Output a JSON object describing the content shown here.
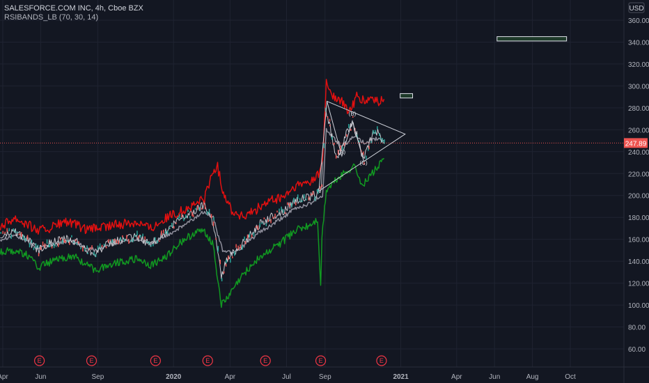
{
  "header": {
    "symbol_line": "SALESFORCE.COM INC, 4h, Cboe BZX",
    "indicator_line": "RSIBANDS_LB (70, 30, 14)"
  },
  "chart_data": {
    "type": "line",
    "currency": "USD",
    "last_price": "247.89",
    "y_ticks": [
      "360.00",
      "340.00",
      "320.00",
      "300.00",
      "280.00",
      "260.00",
      "240.00",
      "220.00",
      "200.00",
      "180.00",
      "160.00",
      "140.00",
      "120.00",
      "100.00",
      "80.00",
      "60.00"
    ],
    "ylim": [
      45,
      368
    ],
    "x_ticks": [
      {
        "label": "Apr",
        "date": "2019-04-01"
      },
      {
        "label": "Jun",
        "date": "2019-06-01"
      },
      {
        "label": "Sep",
        "date": "2019-09-01"
      },
      {
        "label": "2020",
        "date": "2020-01-01"
      },
      {
        "label": "Apr",
        "date": "2020-04-01"
      },
      {
        "label": "Jul",
        "date": "2020-07-01"
      },
      {
        "label": "Sep",
        "date": "2020-09-01"
      },
      {
        "label": "2021",
        "date": "2021-01-01"
      },
      {
        "label": "Apr",
        "date": "2021-04-01"
      },
      {
        "label": "Jun",
        "date": "2021-06-01"
      },
      {
        "label": "Aug",
        "date": "2021-08-01"
      },
      {
        "label": "Oct",
        "date": "2021-10-01"
      }
    ],
    "earnings_marker": "E",
    "earnings_dates": [
      "2019-05-30",
      "2019-08-22",
      "2019-12-03",
      "2020-02-25",
      "2020-05-28",
      "2020-08-25",
      "2020-12-01"
    ],
    "series": [
      {
        "name": "",
        "role": "upper_band",
        "color": "#e31010",
        "points": [
          [
            "2019-03-28",
            172
          ],
          [
            "2019-04-20",
            180
          ],
          [
            "2019-05-10",
            174
          ],
          [
            "2019-05-28",
            168
          ],
          [
            "2019-06-15",
            170
          ],
          [
            "2019-07-10",
            176
          ],
          [
            "2019-07-28",
            173
          ],
          [
            "2019-08-15",
            168
          ],
          [
            "2019-08-28",
            170
          ],
          [
            "2019-09-20",
            172
          ],
          [
            "2019-10-10",
            174
          ],
          [
            "2019-11-05",
            176
          ],
          [
            "2019-11-25",
            170
          ],
          [
            "2019-12-15",
            178
          ],
          [
            "2020-01-10",
            185
          ],
          [
            "2020-02-01",
            190
          ],
          [
            "2020-02-20",
            198
          ],
          [
            "2020-03-05",
            222
          ],
          [
            "2020-03-12",
            226
          ],
          [
            "2020-03-20",
            205
          ],
          [
            "2020-04-05",
            185
          ],
          [
            "2020-04-25",
            180
          ],
          [
            "2020-05-15",
            188
          ],
          [
            "2020-06-05",
            195
          ],
          [
            "2020-06-25",
            198
          ],
          [
            "2020-07-15",
            208
          ],
          [
            "2020-08-05",
            212
          ],
          [
            "2020-08-20",
            218
          ],
          [
            "2020-08-28",
            230
          ],
          [
            "2020-09-03",
            303
          ],
          [
            "2020-09-15",
            290
          ],
          [
            "2020-09-28",
            285
          ],
          [
            "2020-10-10",
            276
          ],
          [
            "2020-10-22",
            290
          ],
          [
            "2020-11-05",
            285
          ],
          [
            "2020-11-15",
            289
          ],
          [
            "2020-11-25",
            285
          ],
          [
            "2020-12-05",
            288
          ]
        ]
      },
      {
        "name": "",
        "role": "lower_band",
        "color": "#119a21",
        "points": [
          [
            "2019-03-28",
            148
          ],
          [
            "2019-04-20",
            150
          ],
          [
            "2019-05-10",
            146
          ],
          [
            "2019-05-28",
            134
          ],
          [
            "2019-06-15",
            139
          ],
          [
            "2019-07-10",
            143
          ],
          [
            "2019-07-28",
            144
          ],
          [
            "2019-08-15",
            136
          ],
          [
            "2019-08-28",
            132
          ],
          [
            "2019-09-20",
            137
          ],
          [
            "2019-10-10",
            140
          ],
          [
            "2019-11-05",
            142
          ],
          [
            "2019-11-25",
            136
          ],
          [
            "2019-12-15",
            142
          ],
          [
            "2020-01-10",
            156
          ],
          [
            "2020-02-01",
            165
          ],
          [
            "2020-02-20",
            168
          ],
          [
            "2020-03-05",
            155
          ],
          [
            "2020-03-12",
            125
          ],
          [
            "2020-03-18",
            100
          ],
          [
            "2020-03-25",
            104
          ],
          [
            "2020-04-10",
            118
          ],
          [
            "2020-04-25",
            130
          ],
          [
            "2020-05-15",
            142
          ],
          [
            "2020-06-05",
            150
          ],
          [
            "2020-06-25",
            158
          ],
          [
            "2020-07-15",
            168
          ],
          [
            "2020-08-05",
            172
          ],
          [
            "2020-08-20",
            178
          ],
          [
            "2020-08-25",
            115
          ],
          [
            "2020-08-27",
            162
          ],
          [
            "2020-09-03",
            205
          ],
          [
            "2020-09-20",
            215
          ],
          [
            "2020-10-05",
            222
          ],
          [
            "2020-10-20",
            228
          ],
          [
            "2020-10-28",
            210
          ],
          [
            "2020-11-05",
            212
          ],
          [
            "2020-11-15",
            220
          ],
          [
            "2020-11-25",
            226
          ],
          [
            "2020-12-05",
            234
          ]
        ]
      },
      {
        "name": "",
        "role": "midline",
        "color": "#8f8f9c",
        "points": [
          [
            "2019-03-28",
            160
          ],
          [
            "2019-04-20",
            164
          ],
          [
            "2019-05-10",
            158
          ],
          [
            "2019-05-28",
            152
          ],
          [
            "2019-06-15",
            155
          ],
          [
            "2019-07-10",
            158
          ],
          [
            "2019-07-28",
            157
          ],
          [
            "2019-08-15",
            152
          ],
          [
            "2019-08-28",
            150
          ],
          [
            "2019-09-20",
            155
          ],
          [
            "2019-10-10",
            158
          ],
          [
            "2019-11-05",
            160
          ],
          [
            "2019-11-25",
            155
          ],
          [
            "2019-12-15",
            162
          ],
          [
            "2020-01-10",
            170
          ],
          [
            "2020-02-01",
            178
          ],
          [
            "2020-02-20",
            186
          ],
          [
            "2020-03-05",
            180
          ],
          [
            "2020-03-12",
            165
          ],
          [
            "2020-03-20",
            150
          ],
          [
            "2020-04-05",
            148
          ],
          [
            "2020-04-25",
            155
          ],
          [
            "2020-05-15",
            165
          ],
          [
            "2020-06-05",
            172
          ],
          [
            "2020-06-25",
            180
          ],
          [
            "2020-07-15",
            188
          ],
          [
            "2020-08-05",
            192
          ],
          [
            "2020-08-20",
            198
          ],
          [
            "2020-08-28",
            200
          ],
          [
            "2020-09-03",
            260
          ],
          [
            "2020-09-15",
            252
          ],
          [
            "2020-09-28",
            245
          ],
          [
            "2020-10-10",
            250
          ],
          [
            "2020-10-22",
            255
          ],
          [
            "2020-11-05",
            246
          ],
          [
            "2020-11-15",
            250
          ],
          [
            "2020-11-25",
            252
          ],
          [
            "2020-12-05",
            250
          ]
        ]
      },
      {
        "name": "",
        "role": "price",
        "color": "#c9c9cf",
        "points": [
          [
            "2019-03-28",
            162
          ],
          [
            "2019-04-20",
            168
          ],
          [
            "2019-05-10",
            160
          ],
          [
            "2019-05-28",
            150
          ],
          [
            "2019-06-15",
            156
          ],
          [
            "2019-07-10",
            160
          ],
          [
            "2019-07-28",
            158
          ],
          [
            "2019-08-15",
            150
          ],
          [
            "2019-08-28",
            148
          ],
          [
            "2019-09-20",
            156
          ],
          [
            "2019-10-10",
            160
          ],
          [
            "2019-11-05",
            162
          ],
          [
            "2019-11-25",
            156
          ],
          [
            "2019-12-15",
            164
          ],
          [
            "2020-01-10",
            178
          ],
          [
            "2020-02-01",
            185
          ],
          [
            "2020-02-20",
            192
          ],
          [
            "2020-03-05",
            175
          ],
          [
            "2020-03-12",
            150
          ],
          [
            "2020-03-18",
            125
          ],
          [
            "2020-03-25",
            140
          ],
          [
            "2020-04-10",
            150
          ],
          [
            "2020-04-25",
            158
          ],
          [
            "2020-05-15",
            172
          ],
          [
            "2020-06-05",
            180
          ],
          [
            "2020-06-25",
            185
          ],
          [
            "2020-07-15",
            196
          ],
          [
            "2020-08-05",
            198
          ],
          [
            "2020-08-20",
            202
          ],
          [
            "2020-08-26",
            205
          ],
          [
            "2020-09-01",
            280
          ],
          [
            "2020-09-08",
            265
          ],
          [
            "2020-09-18",
            236
          ],
          [
            "2020-09-25",
            240
          ],
          [
            "2020-10-05",
            255
          ],
          [
            "2020-10-15",
            268
          ],
          [
            "2020-10-25",
            250
          ],
          [
            "2020-11-02",
            232
          ],
          [
            "2020-11-10",
            245
          ],
          [
            "2020-11-20",
            260
          ],
          [
            "2020-11-28",
            255
          ],
          [
            "2020-12-05",
            248
          ]
        ]
      }
    ],
    "horizontal_line": {
      "value": 247.89,
      "color": "#ef5350"
    },
    "pattern": {
      "labels": [
        {
          "text": "(A)",
          "date": "2020-09-28",
          "value": 238
        },
        {
          "text": "(B)",
          "date": "2020-10-15",
          "value": 273
        },
        {
          "text": "(C)",
          "date": "2020-11-02",
          "value": 228
        }
      ],
      "triangle": [
        [
          "2020-09-04",
          286
        ],
        [
          "2021-01-08",
          256
        ],
        [
          "2020-08-22",
          204
        ]
      ]
    },
    "boxes": [
      {
        "start": "2020-12-31",
        "end": "2021-01-20",
        "low": 289,
        "high": 293
      },
      {
        "start": "2021-06-05",
        "end": "2021-09-25",
        "low": 341,
        "high": 345
      }
    ]
  }
}
